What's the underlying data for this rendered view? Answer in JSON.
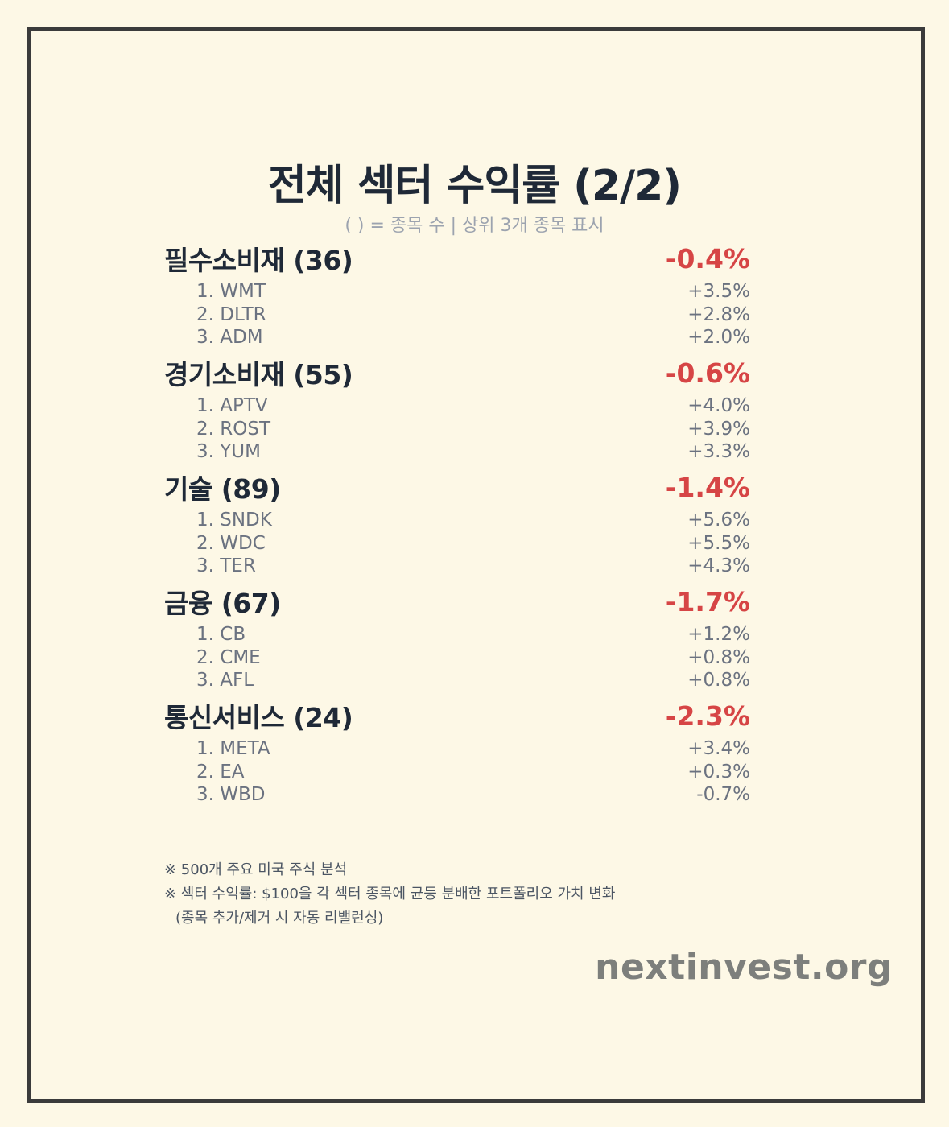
{
  "title": "전체 섹터 수익률 (2/2)",
  "subtitle": "( ) = 종목 수 | 상위 3개 종목 표시",
  "colors": {
    "background": "#fdf8e6",
    "border": "#3b3b3b",
    "negative": "#d64545",
    "text_dark": "#1f2937",
    "text_muted": "#6b7280"
  },
  "sectors": [
    {
      "name": "필수소비재 (36)",
      "return": "-0.4%",
      "stocks": [
        {
          "label": "1. WMT",
          "return": "+3.5%"
        },
        {
          "label": "2. DLTR",
          "return": "+2.8%"
        },
        {
          "label": "3. ADM",
          "return": "+2.0%"
        }
      ]
    },
    {
      "name": "경기소비재 (55)",
      "return": "-0.6%",
      "stocks": [
        {
          "label": "1. APTV",
          "return": "+4.0%"
        },
        {
          "label": "2. ROST",
          "return": "+3.9%"
        },
        {
          "label": "3. YUM",
          "return": "+3.3%"
        }
      ]
    },
    {
      "name": "기술 (89)",
      "return": "-1.4%",
      "stocks": [
        {
          "label": "1. SNDK",
          "return": "+5.6%"
        },
        {
          "label": "2. WDC",
          "return": "+5.5%"
        },
        {
          "label": "3. TER",
          "return": "+4.3%"
        }
      ]
    },
    {
      "name": "금융 (67)",
      "return": "-1.7%",
      "stocks": [
        {
          "label": "1. CB",
          "return": "+1.2%"
        },
        {
          "label": "2. CME",
          "return": "+0.8%"
        },
        {
          "label": "3. AFL",
          "return": "+0.8%"
        }
      ]
    },
    {
      "name": "통신서비스 (24)",
      "return": "-2.3%",
      "stocks": [
        {
          "label": "1. META",
          "return": "+3.4%"
        },
        {
          "label": "2. EA",
          "return": "+0.3%"
        },
        {
          "label": "3. WBD",
          "return": "-0.7%"
        }
      ]
    }
  ],
  "notes": {
    "line1": "※ 500개 주요 미국 주식 분석",
    "line2": "※ 섹터 수익률: $100을 각 섹터 종목에 균등 분배한 포트폴리오 가치 변화",
    "line3": "(종목 추가/제거 시 자동 리밸런싱)"
  },
  "brand": "nextinvest.org"
}
